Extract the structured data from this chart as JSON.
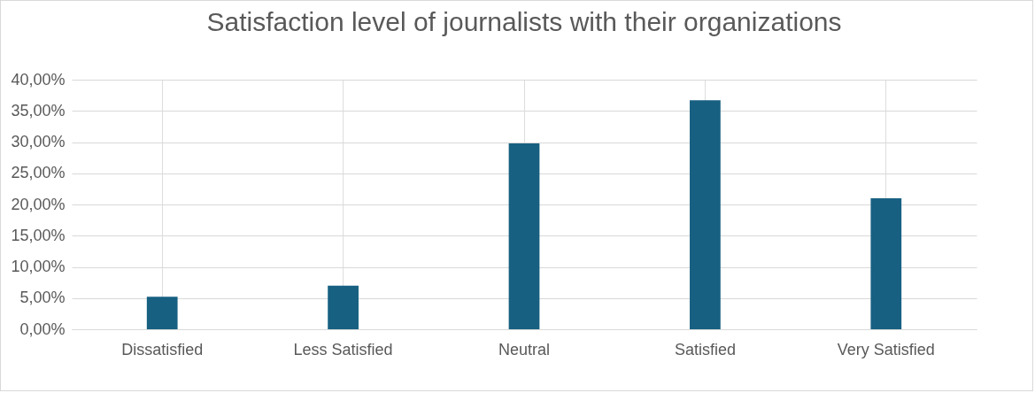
{
  "chart_data": {
    "type": "bar",
    "title": "Satisfaction level of journalists with their organizations",
    "categories": [
      "Dissatisfied",
      "Less Satisfied",
      "Neutral",
      "Satisfied",
      "Very Satisfied"
    ],
    "values": [
      5.2,
      7.0,
      29.8,
      36.7,
      21.0
    ],
    "color": "#176082",
    "ylim": [
      0,
      40
    ],
    "yticks": [
      {
        "value": 0,
        "label": "0,00%"
      },
      {
        "value": 5,
        "label": "5,00%"
      },
      {
        "value": 10,
        "label": "10,00%"
      },
      {
        "value": 15,
        "label": "15,00%"
      },
      {
        "value": 20,
        "label": "20,00%"
      },
      {
        "value": 25,
        "label": "25,00%"
      },
      {
        "value": 30,
        "label": "30,00%"
      },
      {
        "value": 35,
        "label": "35,00%"
      },
      {
        "value": 40,
        "label": "40,00%"
      }
    ],
    "grid": true
  }
}
